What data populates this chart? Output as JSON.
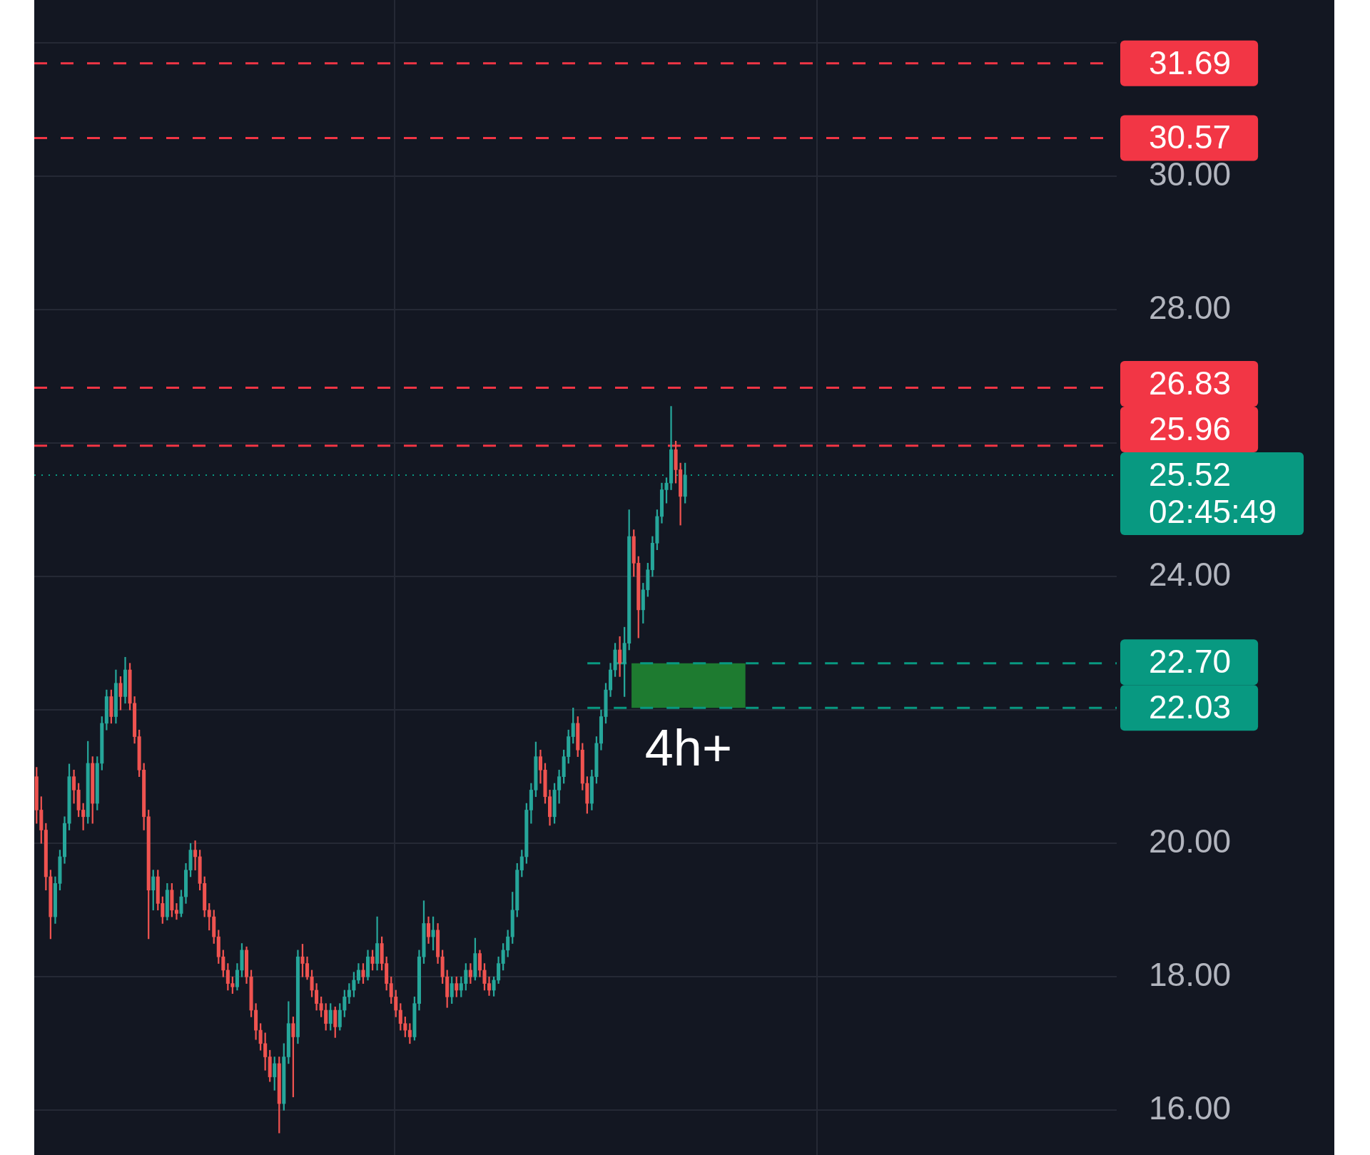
{
  "chart_data": {
    "type": "candlestick",
    "categories": [
      null,
      null,
      null,
      null,
      null,
      null,
      null,
      null,
      null,
      null,
      null,
      null,
      null,
      null,
      null,
      null,
      null,
      null,
      null,
      null,
      null,
      null,
      null,
      null,
      null,
      null,
      null,
      null,
      null,
      null,
      null,
      null,
      null,
      null,
      null,
      null,
      null,
      null,
      null,
      null,
      null,
      null,
      null,
      null,
      null,
      null,
      null,
      null,
      null,
      null,
      null,
      null,
      null,
      null,
      null,
      null,
      null,
      null,
      null,
      null,
      null,
      null,
      null,
      null,
      null,
      null,
      null,
      null,
      null,
      null,
      null,
      null,
      null,
      null,
      null,
      null,
      null,
      null,
      null,
      null,
      null,
      null,
      null,
      null,
      null,
      null,
      null,
      null,
      null,
      null,
      null,
      null,
      null,
      null,
      null,
      null,
      null,
      null,
      null,
      null,
      null,
      null,
      null,
      null,
      null,
      null,
      null,
      null,
      null,
      null,
      null,
      null,
      null,
      null,
      null,
      null,
      null,
      null,
      null,
      null,
      null,
      null,
      null,
      null,
      null,
      null,
      null,
      null,
      null,
      null,
      null,
      null,
      null,
      null,
      null,
      null,
      null,
      null,
      null,
      null,
      null,
      null,
      null,
      null,
      null,
      null,
      null,
      null,
      null,
      null,
      null,
      null,
      null,
      null,
      null,
      null,
      null,
      null,
      null,
      null,
      null,
      null,
      null,
      null,
      null,
      null,
      null,
      null,
      null,
      null,
      null,
      null,
      null,
      null,
      null,
      null,
      null,
      null,
      null,
      null,
      null,
      null,
      null,
      null,
      null,
      null,
      null,
      null,
      null,
      null,
      null,
      null,
      null,
      null,
      null,
      null,
      null,
      null,
      null,
      null,
      null,
      null,
      null,
      null,
      null,
      null,
      null,
      null,
      null,
      null,
      null,
      null,
      null,
      null,
      null,
      null,
      null,
      null,
      null,
      null,
      null,
      null,
      null,
      null,
      null,
      null,
      null,
      null,
      null,
      null,
      null,
      null
    ],
    "ohlc": [
      [
        21.0,
        21.14,
        20.3,
        20.5
      ],
      [
        20.5,
        20.7,
        20.0,
        20.2
      ],
      [
        20.2,
        20.3,
        19.3,
        19.5
      ],
      [
        19.5,
        19.6,
        18.57,
        18.9
      ],
      [
        18.9,
        19.5,
        18.8,
        19.4
      ],
      [
        19.4,
        19.9,
        19.3,
        19.8
      ],
      [
        19.8,
        20.4,
        19.7,
        20.3
      ],
      [
        20.3,
        21.19,
        20.2,
        21.0
      ],
      [
        21.0,
        21.1,
        20.6,
        20.8
      ],
      [
        20.8,
        20.9,
        20.4,
        20.5
      ],
      [
        20.5,
        20.6,
        20.2,
        20.4
      ],
      [
        20.4,
        21.53,
        20.3,
        21.2
      ],
      [
        21.2,
        21.3,
        20.3,
        20.6
      ],
      [
        20.6,
        21.3,
        20.5,
        21.2
      ],
      [
        21.2,
        21.9,
        21.1,
        21.8
      ],
      [
        21.8,
        22.3,
        21.7,
        22.2
      ],
      [
        22.2,
        22.3,
        21.8,
        21.9
      ],
      [
        21.9,
        22.6,
        21.8,
        22.4
      ],
      [
        22.4,
        22.5,
        22.0,
        22.2
      ],
      [
        22.2,
        22.79,
        22.1,
        22.6
      ],
      [
        22.6,
        22.7,
        22.0,
        22.1
      ],
      [
        22.1,
        22.2,
        21.5,
        21.6
      ],
      [
        21.6,
        21.7,
        21.0,
        21.1
      ],
      [
        21.1,
        21.2,
        20.2,
        20.4
      ],
      [
        20.4,
        20.5,
        18.57,
        19.3
      ],
      [
        19.3,
        19.6,
        19.0,
        19.5
      ],
      [
        19.5,
        19.6,
        19.0,
        19.1
      ],
      [
        19.1,
        19.2,
        18.8,
        18.9
      ],
      [
        18.9,
        19.4,
        18.85,
        19.3
      ],
      [
        19.3,
        19.4,
        18.9,
        19.0
      ],
      [
        19.0,
        19.1,
        18.86,
        18.95
      ],
      [
        18.95,
        19.3,
        18.9,
        19.2
      ],
      [
        19.2,
        19.7,
        19.1,
        19.6
      ],
      [
        19.6,
        20.0,
        19.5,
        19.9
      ],
      [
        19.9,
        20.04,
        19.6,
        19.8
      ],
      [
        19.8,
        19.9,
        19.3,
        19.4
      ],
      [
        19.4,
        19.5,
        18.9,
        19.0
      ],
      [
        19.0,
        19.1,
        18.7,
        18.9
      ],
      [
        18.9,
        19.0,
        18.5,
        18.6
      ],
      [
        18.6,
        18.7,
        18.2,
        18.3
      ],
      [
        18.3,
        18.4,
        18.0,
        18.1
      ],
      [
        18.1,
        18.2,
        17.8,
        17.9
      ],
      [
        17.9,
        18.0,
        17.75,
        17.85
      ],
      [
        17.85,
        18.2,
        17.8,
        18.1
      ],
      [
        18.1,
        18.5,
        18.0,
        18.4
      ],
      [
        18.4,
        18.45,
        17.9,
        18.0
      ],
      [
        18.0,
        18.1,
        17.4,
        17.5
      ],
      [
        17.5,
        17.6,
        17.06,
        17.2
      ],
      [
        17.2,
        17.3,
        16.9,
        17.0
      ],
      [
        17.0,
        17.16,
        16.6,
        16.8
      ],
      [
        16.8,
        16.9,
        16.43,
        16.5
      ],
      [
        16.5,
        16.8,
        16.3,
        16.7
      ],
      [
        16.7,
        16.8,
        15.66,
        16.1
      ],
      [
        16.1,
        17.0,
        16.0,
        16.8
      ],
      [
        16.8,
        17.63,
        16.7,
        17.3
      ],
      [
        17.3,
        17.4,
        16.2,
        17.1
      ],
      [
        17.1,
        18.4,
        17.0,
        18.3
      ],
      [
        18.3,
        18.49,
        18.0,
        18.2
      ],
      [
        18.2,
        18.3,
        17.96,
        18.0
      ],
      [
        18.0,
        18.1,
        17.7,
        17.8
      ],
      [
        17.8,
        17.9,
        17.5,
        17.6
      ],
      [
        17.6,
        17.7,
        17.4,
        17.5
      ],
      [
        17.5,
        17.6,
        17.2,
        17.3
      ],
      [
        17.3,
        17.6,
        17.2,
        17.5
      ],
      [
        17.5,
        17.55,
        17.09,
        17.25
      ],
      [
        17.25,
        17.6,
        17.2,
        17.5
      ],
      [
        17.5,
        17.8,
        17.4,
        17.7
      ],
      [
        17.7,
        17.9,
        17.6,
        17.8
      ],
      [
        17.8,
        18.07,
        17.7,
        17.95
      ],
      [
        17.95,
        18.2,
        17.9,
        18.1
      ],
      [
        18.1,
        18.2,
        17.9,
        18.0
      ],
      [
        18.0,
        18.4,
        17.95,
        18.3
      ],
      [
        18.3,
        18.4,
        18.1,
        18.2
      ],
      [
        18.2,
        18.9,
        18.1,
        18.5
      ],
      [
        18.5,
        18.6,
        18.1,
        18.2
      ],
      [
        18.2,
        18.3,
        17.8,
        17.9
      ],
      [
        17.9,
        18.0,
        17.6,
        17.7
      ],
      [
        17.7,
        17.8,
        17.4,
        17.5
      ],
      [
        17.5,
        17.6,
        17.2,
        17.3
      ],
      [
        17.3,
        17.4,
        17.1,
        17.2
      ],
      [
        17.2,
        17.3,
        17.0,
        17.1
      ],
      [
        17.1,
        17.7,
        17.05,
        17.6
      ],
      [
        17.6,
        18.4,
        17.5,
        18.3
      ],
      [
        18.3,
        19.14,
        18.2,
        18.8
      ],
      [
        18.8,
        18.9,
        18.5,
        18.6
      ],
      [
        18.6,
        18.9,
        18.4,
        18.7
      ],
      [
        18.7,
        18.8,
        18.2,
        18.3
      ],
      [
        18.3,
        18.4,
        17.9,
        18.0
      ],
      [
        18.0,
        18.1,
        17.54,
        17.7
      ],
      [
        17.7,
        18.0,
        17.6,
        17.9
      ],
      [
        17.9,
        18.0,
        17.7,
        17.8
      ],
      [
        17.8,
        18.0,
        17.7,
        17.9
      ],
      [
        17.9,
        18.2,
        17.8,
        18.1
      ],
      [
        18.1,
        18.2,
        17.9,
        18.0
      ],
      [
        18.0,
        18.58,
        17.95,
        18.35
      ],
      [
        18.35,
        18.4,
        18.0,
        18.1
      ],
      [
        18.1,
        18.2,
        17.8,
        17.9
      ],
      [
        17.9,
        18.0,
        17.72,
        17.8
      ],
      [
        17.8,
        18.0,
        17.71,
        17.95
      ],
      [
        17.95,
        18.3,
        17.9,
        18.2
      ],
      [
        18.2,
        18.5,
        18.1,
        18.4
      ],
      [
        18.4,
        18.7,
        18.3,
        18.6
      ],
      [
        18.6,
        19.27,
        18.5,
        19.0
      ],
      [
        19.0,
        19.7,
        18.9,
        19.6
      ],
      [
        19.6,
        19.9,
        19.5,
        19.8
      ],
      [
        19.8,
        20.6,
        19.7,
        20.5
      ],
      [
        20.5,
        20.9,
        20.3,
        20.8
      ],
      [
        20.8,
        21.52,
        20.7,
        21.3
      ],
      [
        21.3,
        21.4,
        20.9,
        21.1
      ],
      [
        21.1,
        21.2,
        20.6,
        20.7
      ],
      [
        20.7,
        20.8,
        20.27,
        20.4
      ],
      [
        20.4,
        20.9,
        20.3,
        20.8
      ],
      [
        20.8,
        21.1,
        20.6,
        21.0
      ],
      [
        21.0,
        21.4,
        20.9,
        21.3
      ],
      [
        21.3,
        21.7,
        21.2,
        21.6
      ],
      [
        21.6,
        22.03,
        21.5,
        21.8
      ],
      [
        21.8,
        21.9,
        21.3,
        21.4
      ],
      [
        21.4,
        21.5,
        20.8,
        20.9
      ],
      [
        20.9,
        21.0,
        20.45,
        20.6
      ],
      [
        20.6,
        21.1,
        20.5,
        21.0
      ],
      [
        21.0,
        21.6,
        20.9,
        21.5
      ],
      [
        21.5,
        22.0,
        21.4,
        21.9
      ],
      [
        21.9,
        22.4,
        21.8,
        22.3
      ],
      [
        22.3,
        22.7,
        22.2,
        22.6
      ],
      [
        22.6,
        23.0,
        22.5,
        22.9
      ],
      [
        22.9,
        23.1,
        22.5,
        22.7
      ],
      [
        22.7,
        23.24,
        22.2,
        23.0
      ],
      [
        23.0,
        25.0,
        22.9,
        24.6
      ],
      [
        24.6,
        24.7,
        24.0,
        24.2
      ],
      [
        24.2,
        24.3,
        23.08,
        23.5
      ],
      [
        23.5,
        23.9,
        23.3,
        23.8
      ],
      [
        23.8,
        24.2,
        23.7,
        24.1
      ],
      [
        24.1,
        24.6,
        24.0,
        24.5
      ],
      [
        24.5,
        25.0,
        24.4,
        24.9
      ],
      [
        24.9,
        25.4,
        24.8,
        25.3
      ],
      [
        25.3,
        25.48,
        25.1,
        25.4
      ],
      [
        25.4,
        26.55,
        25.3,
        25.9
      ],
      [
        25.9,
        26.03,
        25.4,
        25.6
      ],
      [
        25.6,
        25.7,
        24.77,
        25.2
      ],
      [
        25.2,
        25.7,
        25.1,
        25.52
      ],
      null,
      null,
      null,
      null,
      null,
      null,
      null,
      null,
      null,
      null,
      null,
      null,
      null,
      null,
      null,
      null,
      null,
      null,
      null,
      null,
      null,
      null,
      null,
      null,
      null,
      null,
      null,
      null,
      null,
      null,
      null,
      null,
      null,
      null,
      null,
      null,
      null,
      null,
      null,
      null,
      null,
      null,
      null,
      null,
      null,
      null,
      null,
      null,
      null,
      null,
      null,
      null,
      null,
      null,
      null,
      null,
      null,
      null,
      null,
      null,
      null,
      null,
      null,
      null,
      null,
      null,
      null,
      null,
      null,
      null,
      null,
      null,
      null,
      null,
      null,
      null,
      null,
      null,
      null,
      null,
      null,
      null,
      null,
      null,
      null,
      null,
      null,
      null,
      null,
      null,
      null,
      null
    ],
    "colors": [
      "#ef5350",
      "#ef5350",
      "#ef5350",
      "#ef5350",
      "#26a69a",
      "#26a69a",
      "#26a69a",
      "#26a69a",
      "#ef5350",
      "#ef5350",
      "#ef5350",
      "#26a69a",
      "#ef5350",
      "#26a69a",
      "#26a69a",
      "#26a69a",
      "#ef5350",
      "#26a69a",
      "#ef5350",
      "#26a69a",
      "#ef5350",
      "#ef5350",
      "#ef5350",
      "#ef5350",
      "#ef5350",
      "#26a69a",
      "#ef5350",
      "#ef5350",
      "#26a69a",
      "#ef5350",
      "#ef5350",
      "#26a69a",
      "#26a69a",
      "#26a69a",
      "#ef5350",
      "#ef5350",
      "#ef5350",
      "#ef5350",
      "#ef5350",
      "#ef5350",
      "#ef5350",
      "#ef5350",
      "#ef5350",
      "#26a69a",
      "#26a69a",
      "#ef5350",
      "#ef5350",
      "#ef5350",
      "#ef5350",
      "#ef5350",
      "#ef5350",
      "#26a69a",
      "#ef5350",
      "#26a69a",
      "#26a69a",
      "#ef5350",
      "#26a69a",
      "#ef5350",
      "#ef5350",
      "#ef5350",
      "#ef5350",
      "#ef5350",
      "#ef5350",
      "#26a69a",
      "#ef5350",
      "#26a69a",
      "#26a69a",
      "#26a69a",
      "#26a69a",
      "#26a69a",
      "#ef5350",
      "#26a69a",
      "#ef5350",
      "#26a69a",
      "#ef5350",
      "#ef5350",
      "#ef5350",
      "#ef5350",
      "#ef5350",
      "#ef5350",
      "#ef5350",
      "#26a69a",
      "#26a69a",
      "#26a69a",
      "#ef5350",
      "#26a69a",
      "#ef5350",
      "#ef5350",
      "#ef5350",
      "#26a69a",
      "#ef5350",
      "#26a69a",
      "#26a69a",
      "#ef5350",
      "#26a69a",
      "#ef5350",
      "#ef5350",
      "#ef5350",
      "#26a69a",
      "#26a69a",
      "#26a69a",
      "#26a69a",
      "#26a69a",
      "#26a69a",
      "#26a69a",
      "#26a69a",
      "#26a69a",
      "#26a69a",
      "#ef5350",
      "#ef5350",
      "#ef5350",
      "#26a69a",
      "#26a69a",
      "#26a69a",
      "#26a69a",
      "#26a69a",
      "#ef5350",
      "#ef5350",
      "#ef5350",
      "#26a69a",
      "#26a69a",
      "#26a69a",
      "#26a69a",
      "#26a69a",
      "#26a69a",
      "#ef5350",
      "#26a69a",
      "#26a69a",
      "#ef5350",
      "#ef5350",
      "#26a69a",
      "#26a69a",
      "#26a69a",
      "#26a69a",
      "#26a69a",
      "#26a69a",
      "#26a69a",
      "#ef5350",
      "#ef5350",
      "#26a69a",
      null,
      null,
      null,
      null,
      null,
      null,
      null,
      null,
      null,
      null,
      null,
      null,
      null,
      null,
      null,
      null,
      null,
      null,
      null,
      null,
      null,
      null,
      null,
      null,
      null,
      null,
      null,
      null,
      null,
      null,
      null,
      null,
      null,
      null,
      null,
      null,
      null,
      null,
      null,
      null,
      null,
      null,
      null,
      null,
      null,
      null,
      null,
      null,
      null,
      null,
      null,
      null,
      null,
      null,
      null,
      null,
      null,
      null,
      null,
      null,
      null,
      null,
      null,
      null,
      null,
      null,
      null,
      null,
      null,
      null,
      null,
      null,
      null,
      null,
      null,
      null,
      null,
      null,
      null,
      null,
      null,
      null,
      null,
      null,
      null,
      null,
      null,
      null,
      null,
      null,
      null,
      null
    ],
    "ylim": [
      15.33,
      32.64
    ],
    "yticks": [
      {
        "value": 16,
        "label": "16.00"
      },
      {
        "value": 18,
        "label": "18.00"
      },
      {
        "value": 20,
        "label": "20.00"
      },
      {
        "value": 22,
        "label": null
      },
      {
        "value": 24,
        "label": "24.00"
      },
      {
        "value": 26,
        "label": null
      },
      {
        "value": 28,
        "label": "28.00"
      },
      {
        "value": 30,
        "label": "30.00"
      },
      {
        "value": 32,
        "label": null
      }
    ],
    "grid": true,
    "tick_labels": "y",
    "ref_lines": [
      {
        "axis": "y",
        "value": 31.69,
        "label": "31.69",
        "color": "#f23645",
        "line_style": "dashed"
      },
      {
        "axis": "y",
        "value": 30.57,
        "label": "30.57",
        "color": "#f23645",
        "line_style": "dashed"
      },
      {
        "axis": "y",
        "value": 26.83,
        "label": "26.83",
        "color": "#f23645",
        "line_style": "dashed"
      },
      {
        "axis": "y",
        "value": 25.96,
        "label": "25.96",
        "color": "#f23645",
        "line_style": "dashed"
      },
      {
        "axis": "y",
        "value": 25.52,
        "label": "25.52\n02:45:49",
        "color": "#089981",
        "line_style": "dotted"
      },
      {
        "axis": "y",
        "value": 22.7,
        "label": "22.70",
        "color": "#089981",
        "line_style": "dashed"
      },
      {
        "axis": "y",
        "value": 22.03,
        "label": "22.03",
        "color": "#089981",
        "line_style": "dashed"
      }
    ],
    "bands": [
      {
        "axis": "y",
        "from": 22.03,
        "to": 22.7,
        "label": "4h+",
        "color": "#1e7b30"
      }
    ]
  }
}
